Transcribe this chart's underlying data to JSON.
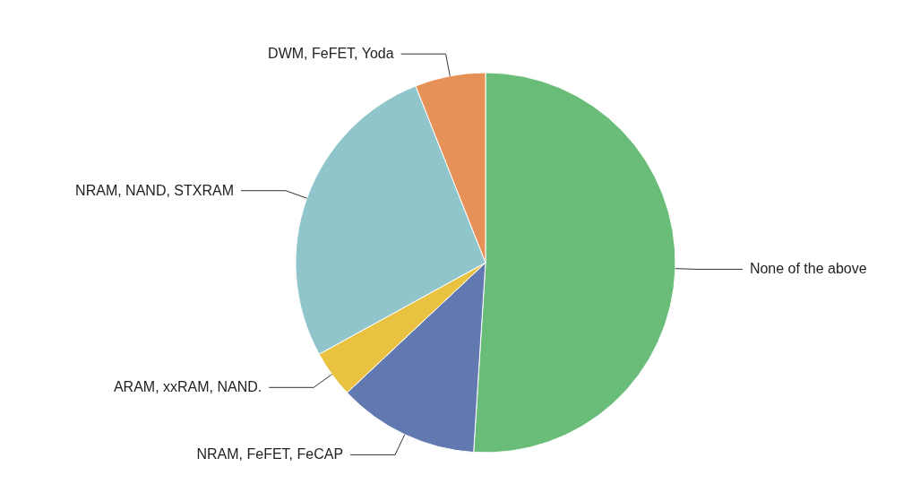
{
  "chart_data": {
    "type": "pie",
    "categories": [
      "None of the above",
      "NRAM, FeFET, FeCAP",
      "ARAM, xxRAM, NAND.",
      "NRAM, NAND, STXRAM",
      "DWM, FeFET, Yoda"
    ],
    "values": [
      51,
      12,
      4,
      27,
      6
    ],
    "colors": [
      "#69bd78",
      "#6178b0",
      "#e8c240",
      "#90c6cb",
      "#e69158"
    ],
    "legend": false
  }
}
